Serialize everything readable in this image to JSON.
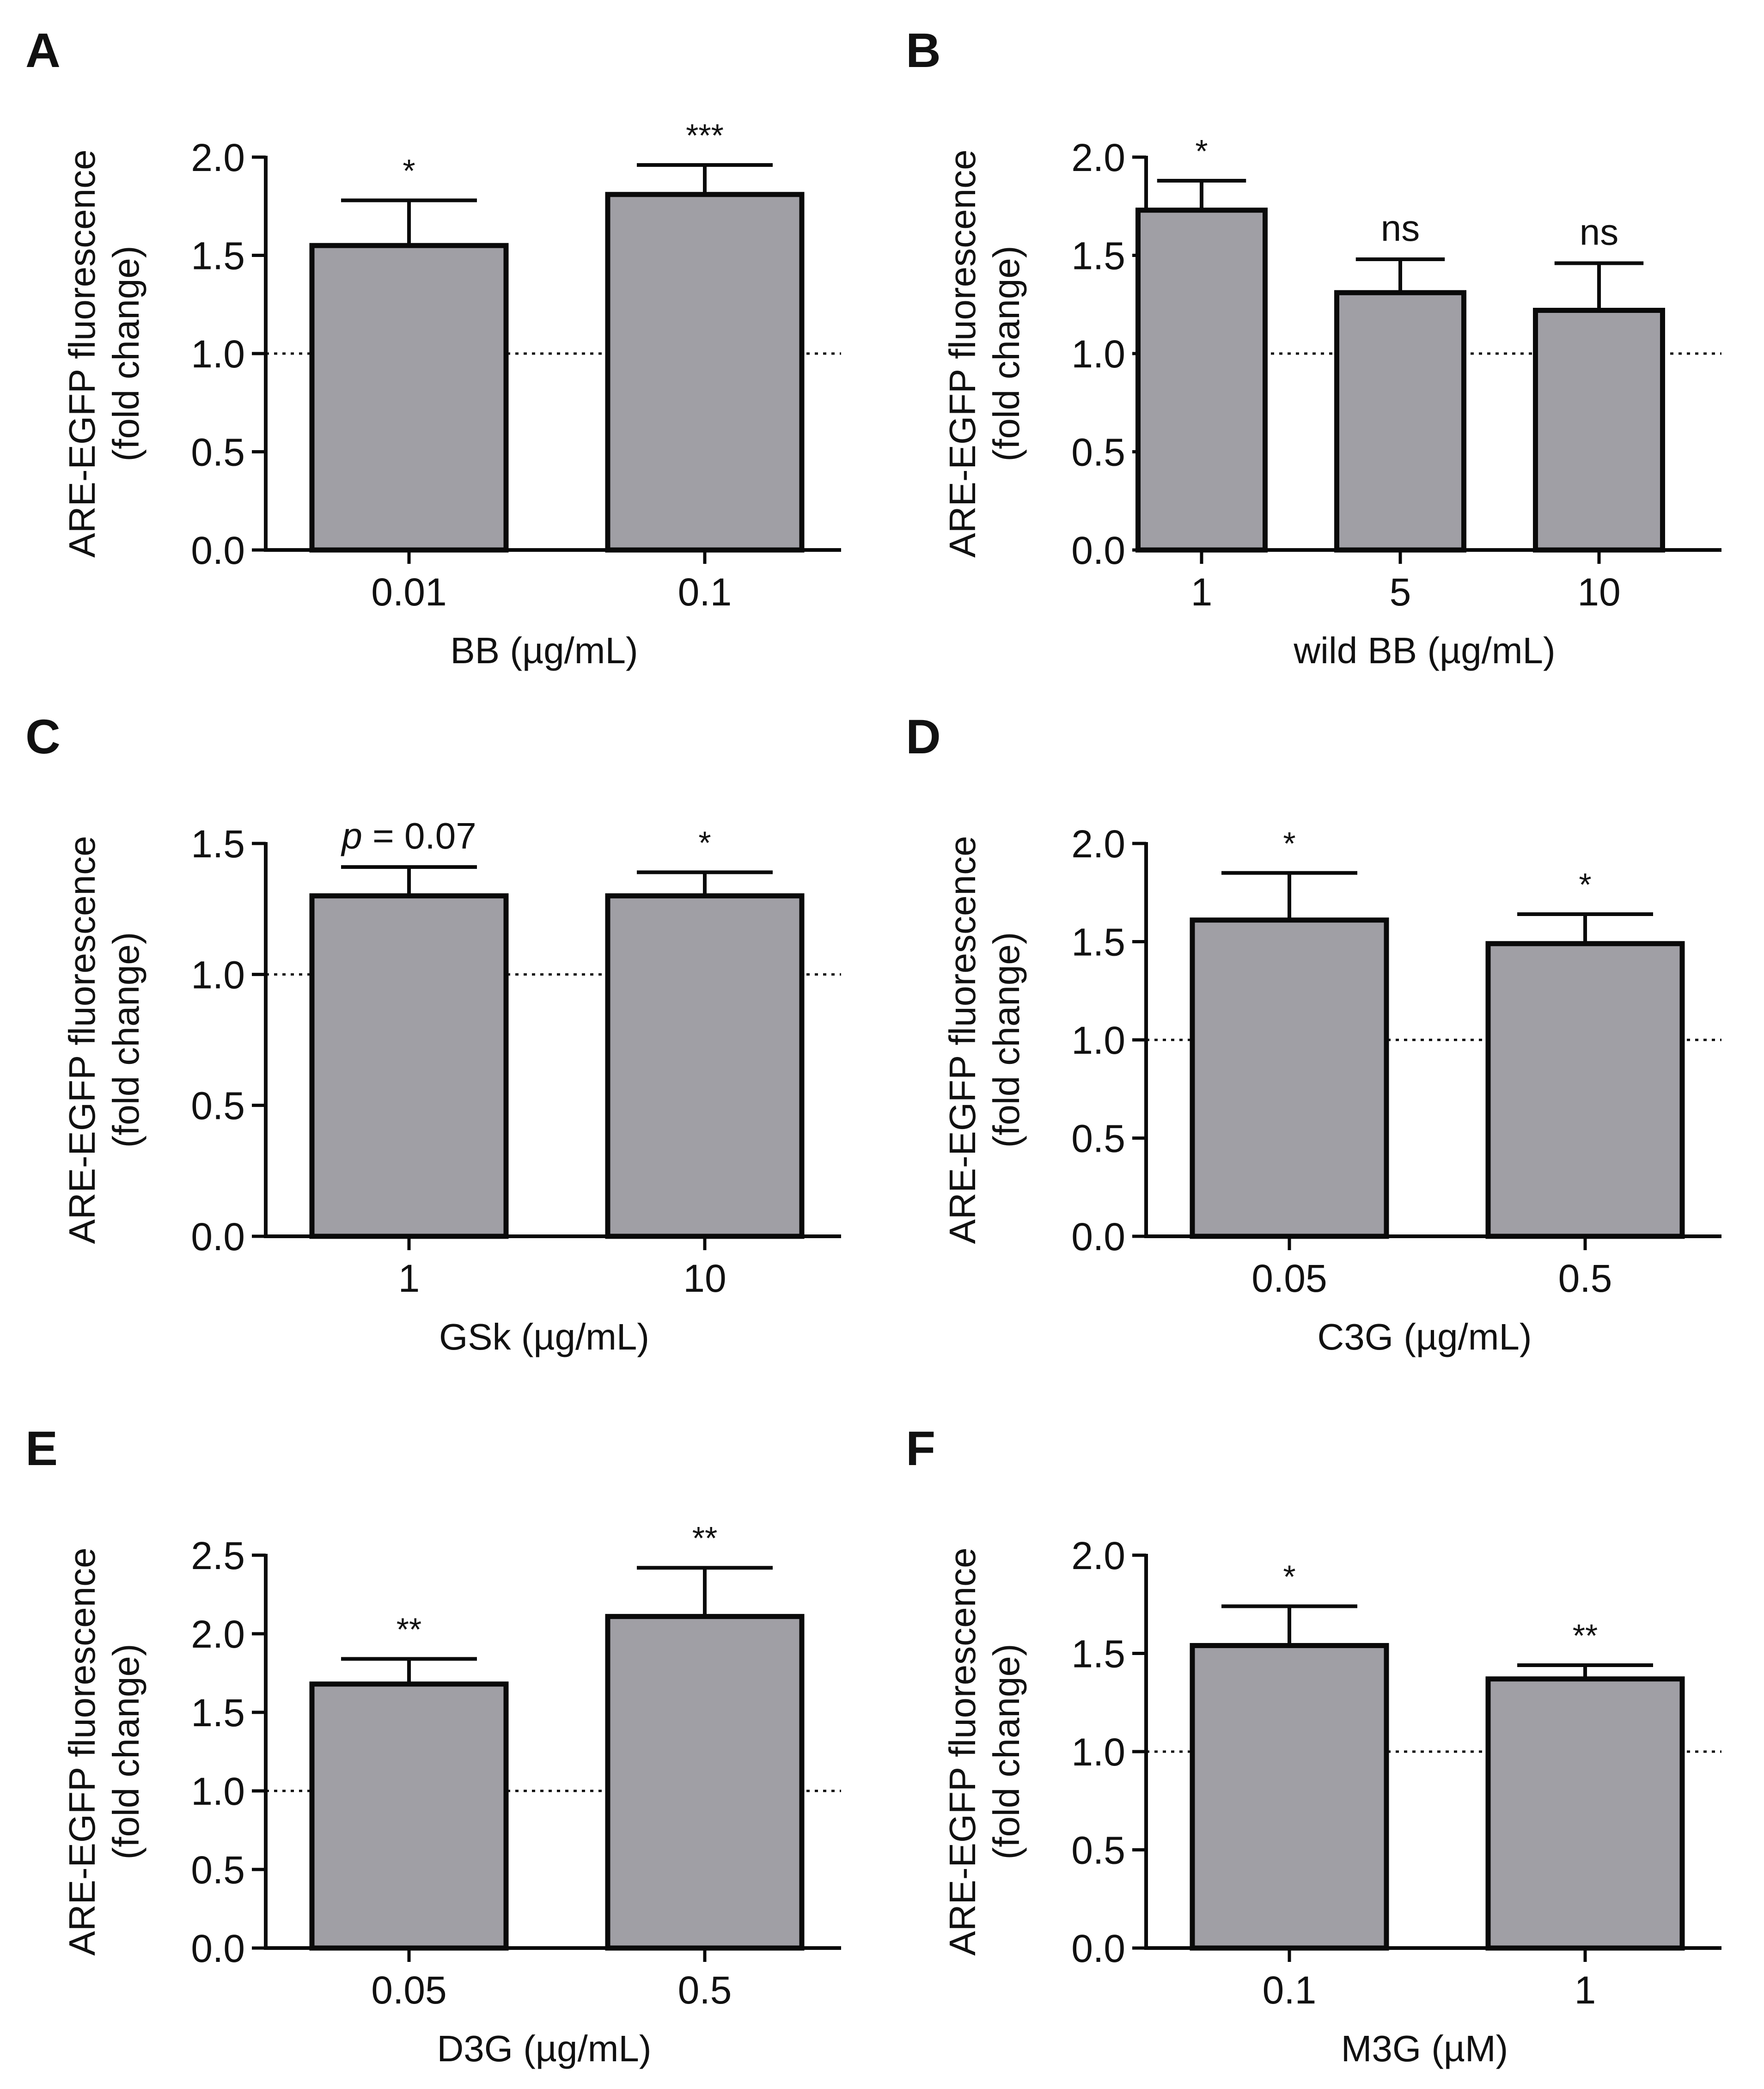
{
  "figure": {
    "bar_fill": "#a09fa5",
    "stroke": "#0a0a0a",
    "ylabel_line1": "ARE-EGFP fluorescence",
    "ylabel_line2": "(fold change)"
  },
  "chart_data": [
    {
      "panel": "A",
      "type": "bar",
      "categories": [
        "0.01",
        "0.1"
      ],
      "values": [
        1.55,
        1.81
      ],
      "errors": [
        0.23,
        0.15
      ],
      "significance": [
        "*",
        "***"
      ],
      "xlabel": "BB (µg/mL)",
      "ylabel": "ARE-EGFP fluorescence (fold change)",
      "ylim": [
        0,
        2.0
      ],
      "yticks": [
        "0.0",
        "0.5",
        "1.0",
        "1.5",
        "2.0"
      ],
      "reference_line": 1.0
    },
    {
      "panel": "B",
      "type": "bar",
      "categories": [
        "1",
        "5",
        "10"
      ],
      "values": [
        1.73,
        1.31,
        1.22
      ],
      "errors": [
        0.15,
        0.17,
        0.24
      ],
      "significance": [
        "*",
        "ns",
        "ns"
      ],
      "xlabel": "wild BB (µg/mL)",
      "ylabel": "ARE-EGFP fluorescence (fold change)",
      "ylim": [
        0,
        2.0
      ],
      "yticks": [
        "0.0",
        "0.5",
        "1.0",
        "1.5",
        "2.0"
      ],
      "reference_line": 1.0
    },
    {
      "panel": "C",
      "type": "bar",
      "categories": [
        "1",
        "10"
      ],
      "values": [
        1.3,
        1.3
      ],
      "errors": [
        0.11,
        0.09
      ],
      "significance": [
        "p = 0.07",
        "*"
      ],
      "xlabel": "GSk (µg/mL)",
      "ylabel": "ARE-EGFP fluorescence (fold change)",
      "ylim": [
        0,
        1.5
      ],
      "yticks": [
        "0.0",
        "0.5",
        "1.0",
        "1.5"
      ],
      "reference_line": 1.0
    },
    {
      "panel": "D",
      "type": "bar",
      "categories": [
        "0.05",
        "0.5"
      ],
      "values": [
        1.61,
        1.49
      ],
      "errors": [
        0.24,
        0.15
      ],
      "significance": [
        "*",
        "*"
      ],
      "xlabel": "C3G (µg/mL)",
      "ylabel": "ARE-EGFP fluorescence (fold change)",
      "ylim": [
        0,
        2.0
      ],
      "yticks": [
        "0.0",
        "0.5",
        "1.0",
        "1.5",
        "2.0"
      ],
      "reference_line": 1.0
    },
    {
      "panel": "E",
      "type": "bar",
      "categories": [
        "0.05",
        "0.5"
      ],
      "values": [
        1.68,
        2.11
      ],
      "errors": [
        0.16,
        0.31
      ],
      "significance": [
        "**",
        "**"
      ],
      "xlabel": "D3G (µg/mL)",
      "ylabel": "ARE-EGFP fluorescence (fold change)",
      "ylim": [
        0,
        2.5
      ],
      "yticks": [
        "0.0",
        "0.5",
        "1.0",
        "1.5",
        "2.0",
        "2.5"
      ],
      "reference_line": 1.0
    },
    {
      "panel": "F",
      "type": "bar",
      "categories": [
        "0.1",
        "1"
      ],
      "values": [
        1.54,
        1.37
      ],
      "errors": [
        0.2,
        0.07
      ],
      "significance": [
        "*",
        "**"
      ],
      "xlabel": "M3G (µM)",
      "ylabel": "ARE-EGFP fluorescence (fold change)",
      "ylim": [
        0,
        2.0
      ],
      "yticks": [
        "0.0",
        "0.5",
        "1.0",
        "1.5",
        "2.0"
      ],
      "reference_line": 1.0
    }
  ]
}
